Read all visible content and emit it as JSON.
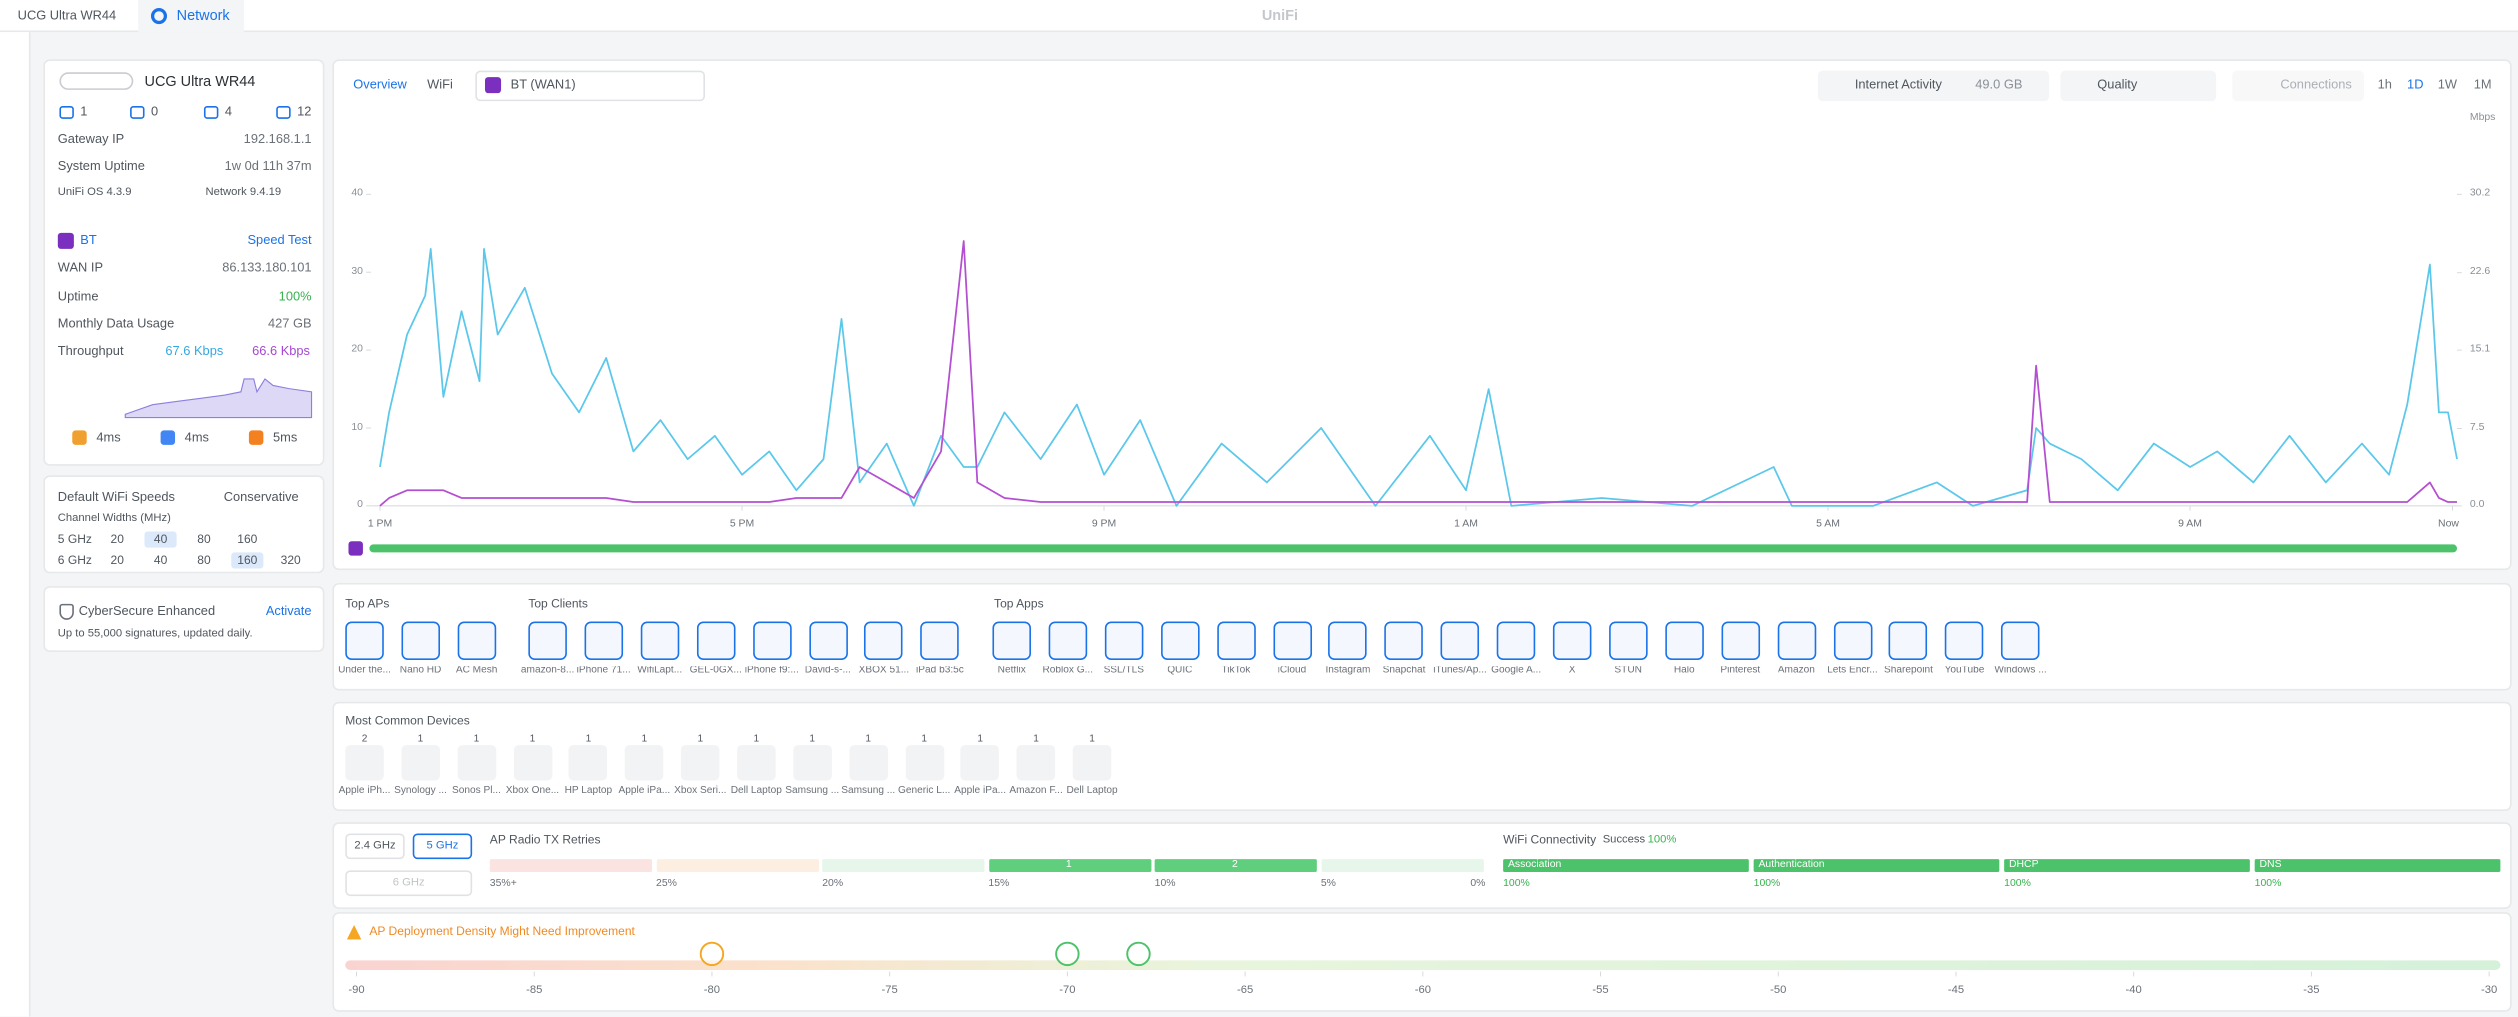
{
  "topbar": {
    "device": "UCG Ultra WR44",
    "tab": "Network",
    "brand": "UniFi"
  },
  "device": {
    "name": "UCG Ultra WR44",
    "counts": [
      1,
      0,
      4,
      12
    ],
    "rows": [
      [
        "Gateway IP",
        "192.168.1.1"
      ],
      [
        "System Uptime",
        "1w 0d 11h 37m"
      ]
    ],
    "os": "UniFi OS 4.3.9",
    "network": "Network 9.4.19"
  },
  "wan": {
    "name": "BT",
    "speed_test": "Speed Test",
    "rows": [
      [
        "WAN IP",
        "86.133.180.101"
      ],
      [
        "Uptime",
        "100%"
      ],
      [
        "Monthly Data Usage",
        "427 GB"
      ]
    ],
    "throughput_label": "Throughput",
    "down": "67.6 Kbps",
    "up": "66.6 Kbps",
    "pings": [
      "4ms",
      "4ms",
      "5ms"
    ]
  },
  "wifi_speeds": {
    "title": "Default WiFi Speeds",
    "mode": "Conservative",
    "subtitle": "Channel Widths (MHz)",
    "bands": [
      {
        "name": "5 GHz",
        "widths": [
          20,
          40,
          80,
          160
        ],
        "selected": 1
      },
      {
        "name": "6 GHz",
        "widths": [
          20,
          40,
          80,
          160,
          320
        ],
        "selected": 3
      }
    ]
  },
  "cybersecure": {
    "title": "CyberSecure Enhanced",
    "action": "Activate",
    "text": "Up to 55,000 signatures, updated daily."
  },
  "toolbar": {
    "tabs": [
      "Overview",
      "WiFi"
    ],
    "wan": "BT (WAN1)",
    "activity": "Internet Activity",
    "activity_value": "49.0 GB",
    "quality": "Quality",
    "connections": "Connections",
    "ranges": [
      "1h",
      "1D",
      "1W",
      "1M"
    ]
  },
  "chart_data": {
    "type": "line",
    "y2_label": "Mbps",
    "x": [
      0,
      0.1,
      0.3,
      0.5,
      0.56,
      0.7,
      0.9,
      1.1,
      1.15,
      1.3,
      1.6,
      1.9,
      2.2,
      2.5,
      2.8,
      3.1,
      3.4,
      3.7,
      4,
      4.3,
      4.6,
      4.9,
      5.1,
      5.3,
      5.6,
      5.9,
      6.2,
      6.45,
      6.6,
      6.9,
      7.3,
      7.7,
      8,
      8.4,
      8.8,
      9.3,
      9.8,
      10.4,
      11,
      11.6,
      12,
      12.25,
      12.5,
      13.5,
      14.5,
      15.4,
      15.6,
      16.5,
      17.2,
      17.6,
      18.2,
      18.3,
      18.45,
      18.8,
      19.2,
      19.6,
      20,
      20.3,
      20.7,
      21.1,
      21.5,
      21.9,
      22.2,
      22.4,
      22.65,
      22.75,
      22.85,
      22.95
    ],
    "series": [
      {
        "color": "#5bc8eb",
        "values": [
          5,
          12,
          22,
          27,
          33,
          14,
          25,
          16,
          33,
          22,
          28,
          17,
          12,
          19,
          7,
          11,
          6,
          9,
          4,
          7,
          2,
          6,
          24,
          3,
          8,
          0,
          9,
          5,
          5,
          12,
          6,
          13,
          4,
          11,
          0,
          8,
          3,
          10,
          0,
          9,
          2,
          15,
          0,
          1,
          0,
          5,
          0,
          0,
          3,
          0,
          2,
          10,
          8,
          6,
          2,
          8,
          5,
          7,
          3,
          9,
          3,
          8,
          4,
          13,
          31,
          12,
          12,
          6
        ]
      },
      {
        "color": "#b44fd1",
        "values": [
          0,
          1,
          2,
          2,
          2,
          2,
          1,
          1,
          1,
          1,
          1,
          1,
          1,
          1,
          0.5,
          0.5,
          0.5,
          0.5,
          0.5,
          0.5,
          1,
          1,
          1,
          5,
          3,
          1,
          7,
          34,
          3,
          1,
          0.5,
          0.5,
          0.5,
          0.5,
          0.5,
          0.5,
          0.5,
          0.5,
          0.5,
          0.5,
          0.5,
          0.5,
          0.5,
          0.5,
          0.5,
          0.5,
          0.5,
          0.5,
          0.5,
          0.5,
          0.5,
          18,
          0.5,
          0.5,
          0.5,
          0.5,
          0.5,
          0.5,
          0.5,
          0.5,
          0.5,
          0.5,
          0.5,
          0.5,
          3,
          1,
          0.5,
          0.5
        ]
      }
    ],
    "xlim": [
      -0.1,
      22.95
    ],
    "xticks": [
      {
        "value": 0,
        "label": "1 PM"
      },
      {
        "value": 4,
        "label": "5 PM"
      },
      {
        "value": 8,
        "label": "9 PM"
      },
      {
        "value": 12,
        "label": "1 AM"
      },
      {
        "value": 16,
        "label": "5 AM"
      },
      {
        "value": 20,
        "label": "9 AM"
      },
      {
        "value": 22.9,
        "label": "Now"
      }
    ],
    "ylim": [
      0,
      40
    ],
    "yticks": [
      0,
      10,
      20,
      30,
      40
    ],
    "y2lim": [
      0,
      30.2
    ],
    "y2ticks": [
      {
        "value": 0,
        "label": "0.0"
      },
      7.5,
      15.1,
      22.6,
      30.2
    ]
  },
  "top_aps": {
    "title": "Top APs",
    "items": [
      "Under the...",
      "Nano HD",
      "AC Mesh"
    ]
  },
  "top_clients": {
    "title": "Top Clients",
    "items": [
      "amazon-8...",
      "iPhone 71...",
      "WifiLapt...",
      "GEL-0GX...",
      "iPhone f9:...",
      "David-s-...",
      "XBOX 51...",
      "iPad b3:5c"
    ]
  },
  "top_apps": {
    "title": "Top Apps",
    "items": [
      "Netflix",
      "Roblox G...",
      "SSL/TLS",
      "QUIC",
      "TikTok",
      "iCloud",
      "Instagram",
      "Snapchat",
      "iTunes/Ap...",
      "Google A...",
      "X",
      "STUN",
      "Halo",
      "Pinterest",
      "Amazon",
      "Lets Encr...",
      "Sharepoint",
      "YouTube",
      "Windows ..."
    ]
  },
  "common_devices": {
    "title": "Most Common Devices",
    "items": [
      {
        "name": "Apple iPh...",
        "count": 2
      },
      {
        "name": "Synology ...",
        "count": 1
      },
      {
        "name": "Sonos Pl...",
        "count": 1
      },
      {
        "name": "Xbox One...",
        "count": 1
      },
      {
        "name": "HP Laptop",
        "count": 1
      },
      {
        "name": "Apple iPa...",
        "count": 1
      },
      {
        "name": "Xbox Seri...",
        "count": 1
      },
      {
        "name": "Dell Laptop",
        "count": 1
      },
      {
        "name": "Samsung ...",
        "count": 1
      },
      {
        "name": "Samsung ...",
        "count": 1
      },
      {
        "name": "Generic L...",
        "count": 1
      },
      {
        "name": "Apple iPa...",
        "count": 1
      },
      {
        "name": "Amazon F...",
        "count": 1
      },
      {
        "name": "Dell Laptop",
        "count": 1
      }
    ]
  },
  "radio": {
    "bands": [
      "2.4 GHz",
      "5 GHz",
      "6 GHz"
    ],
    "title": "AP Radio TX Retries",
    "scale": [
      "35%+",
      "25%",
      "20%",
      "15%",
      "10%",
      "5%",
      "0%"
    ],
    "segments": [
      {
        "color": "#fbe3e1",
        "count": null
      },
      {
        "color": "#fdeee2",
        "count": null
      },
      {
        "color": "#e6f6ea",
        "count": null
      },
      {
        "color": "#5fcf7d",
        "count": 1
      },
      {
        "color": "#5fcf7d",
        "count": 2
      },
      {
        "color": "#e6f6ea",
        "count": null
      }
    ]
  },
  "connectivity": {
    "title": "WiFi Connectivity",
    "status": "Success",
    "status_value": "100%",
    "steps": [
      {
        "name": "Association",
        "value": "100%"
      },
      {
        "name": "Authentication",
        "value": "100%"
      },
      {
        "name": "DHCP",
        "value": "100%"
      },
      {
        "name": "DNS",
        "value": "100%"
      }
    ]
  },
  "density": {
    "warning": "AP Deployment Density Might Need Improvement",
    "xlim": [
      -90,
      -30
    ],
    "ticks": [
      -90,
      -85,
      -80,
      -75,
      -70,
      -65,
      -60,
      -55,
      -50,
      -45,
      -40,
      -35,
      -30
    ],
    "markers": [
      {
        "value": -80,
        "color": "#f5a623"
      },
      {
        "value": -70,
        "color": "#4cc26a"
      },
      {
        "value": -68,
        "color": "#4cc26a"
      }
    ]
  }
}
